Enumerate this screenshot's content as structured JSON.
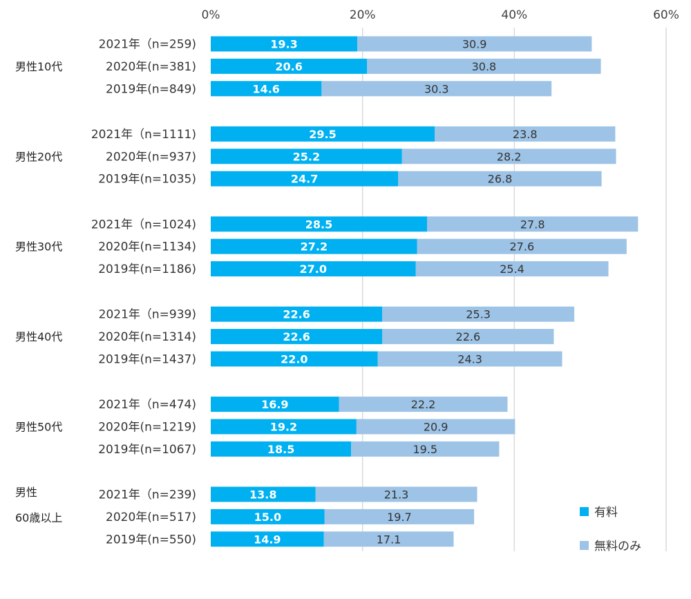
{
  "chart_data": {
    "type": "bar",
    "orientation": "horizontal",
    "stacked": true,
    "xlim": [
      0,
      60
    ],
    "xticks": [
      "0%",
      "20%",
      "40%",
      "60%"
    ],
    "grid": true,
    "legend": "bottom-right",
    "colors": {
      "paid": "#00B0F0",
      "free_only": "#9DC3E6",
      "grid": "#D9D9D9"
    },
    "series": [
      {
        "key": "paid",
        "name": "有料"
      },
      {
        "key": "free_only",
        "name": "無料のみ"
      }
    ],
    "groups": [
      {
        "label": "男性10代",
        "rows": [
          {
            "label": "2021年（n=259)",
            "paid": 19.3,
            "free_only": 30.9
          },
          {
            "label": "2020年(n=381)",
            "paid": 20.6,
            "free_only": 30.8
          },
          {
            "label": "2019年(n=849)",
            "paid": 14.6,
            "free_only": 30.3
          }
        ]
      },
      {
        "label": "男性20代",
        "rows": [
          {
            "label": "2021年（n=1111)",
            "paid": 29.5,
            "free_only": 23.8
          },
          {
            "label": "2020年(n=937)",
            "paid": 25.2,
            "free_only": 28.2
          },
          {
            "label": "2019年(n=1035)",
            "paid": 24.7,
            "free_only": 26.8
          }
        ]
      },
      {
        "label": "男性30代",
        "rows": [
          {
            "label": "2021年（n=1024)",
            "paid": 28.5,
            "free_only": 27.8
          },
          {
            "label": "2020年(n=1134)",
            "paid": 27.2,
            "free_only": 27.6
          },
          {
            "label": "2019年(n=1186)",
            "paid": 27.0,
            "free_only": 25.4
          }
        ]
      },
      {
        "label": "男性40代",
        "rows": [
          {
            "label": "2021年（n=939)",
            "paid": 22.6,
            "free_only": 25.3
          },
          {
            "label": "2020年(n=1314)",
            "paid": 22.6,
            "free_only": 22.6
          },
          {
            "label": "2019年(n=1437)",
            "paid": 22.0,
            "free_only": 24.3
          }
        ]
      },
      {
        "label": "男性50代",
        "rows": [
          {
            "label": "2021年（n=474)",
            "paid": 16.9,
            "free_only": 22.2
          },
          {
            "label": "2020年(n=1219)",
            "paid": 19.2,
            "free_only": 20.9
          },
          {
            "label": "2019年(n=1067)",
            "paid": 18.5,
            "free_only": 19.5
          }
        ]
      },
      {
        "label": "男性\n60歳以上",
        "rows": [
          {
            "label": "2021年（n=239)",
            "paid": 13.8,
            "free_only": 21.3
          },
          {
            "label": "2020年(n=517)",
            "paid": 15.0,
            "free_only": 19.7
          },
          {
            "label": "2019年(n=550)",
            "paid": 14.9,
            "free_only": 17.1
          }
        ]
      }
    ]
  }
}
